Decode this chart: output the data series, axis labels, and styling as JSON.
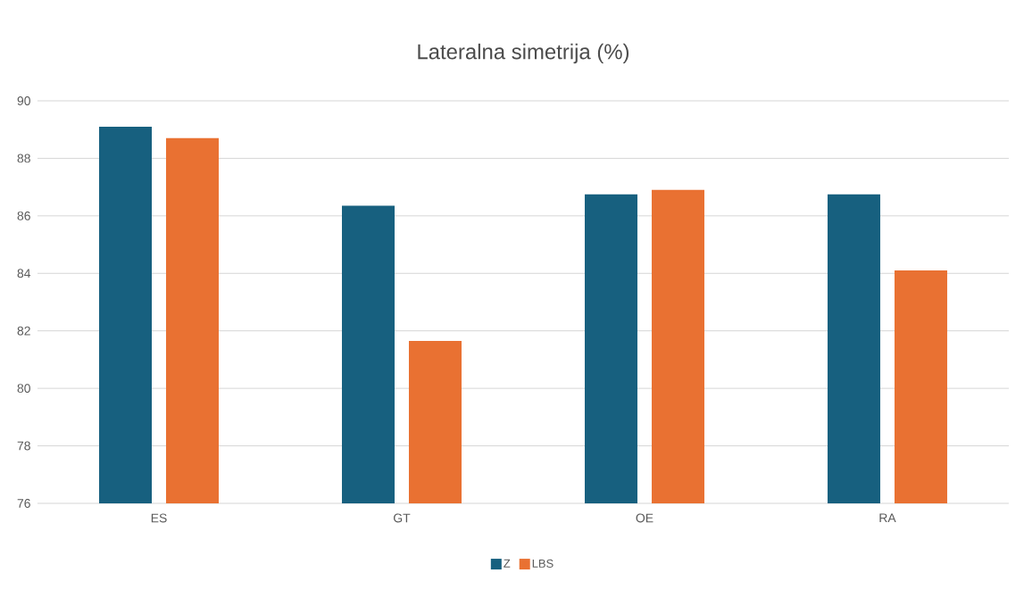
{
  "chart_data": {
    "type": "bar",
    "title": "Lateralna simetrija (%)",
    "categories": [
      "ES",
      "GT",
      "OE",
      "RA"
    ],
    "series": [
      {
        "name": "Z",
        "color": "#17607f",
        "values": [
          89.1,
          86.35,
          86.75,
          86.75
        ]
      },
      {
        "name": "LBS",
        "color": "#e97132",
        "values": [
          88.7,
          81.65,
          86.9,
          84.1
        ]
      }
    ],
    "ylim": [
      76,
      90
    ],
    "yticks": [
      76,
      78,
      80,
      82,
      84,
      86,
      88,
      90
    ],
    "grid": "y",
    "legend": "bottom"
  }
}
